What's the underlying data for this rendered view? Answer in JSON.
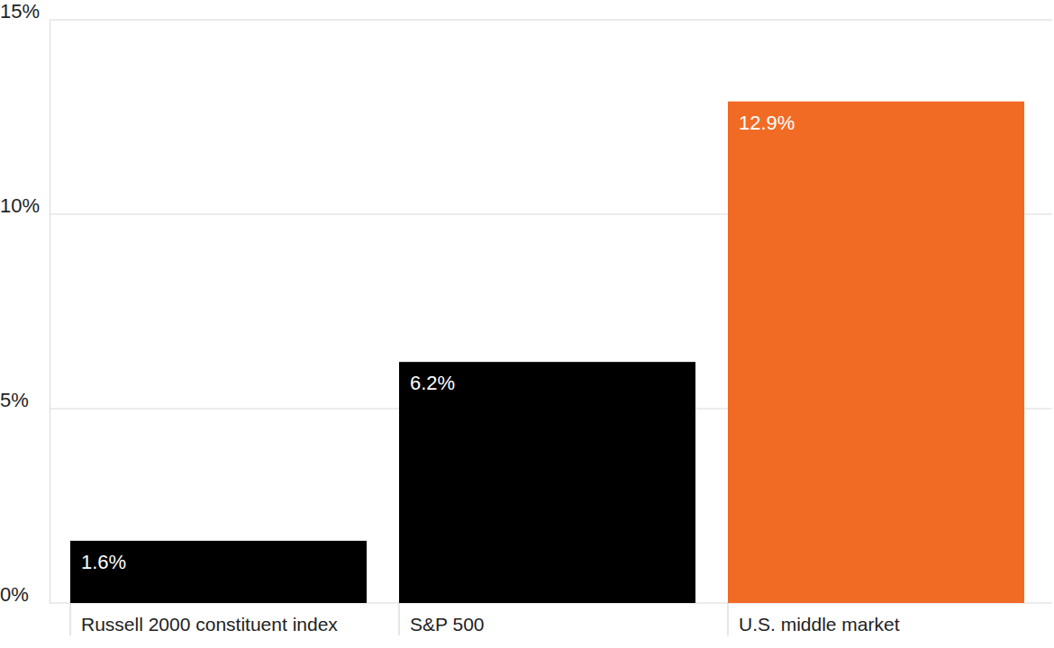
{
  "chart_data": {
    "type": "bar",
    "categories": [
      "Russell 2000 constituent index",
      "S&P 500",
      "U.S. middle market"
    ],
    "values": [
      1.6,
      6.2,
      12.9
    ],
    "value_labels": [
      "1.6%",
      "6.2%",
      "12.9%"
    ],
    "colors": [
      "#000000",
      "#000000",
      "#f26b24"
    ],
    "ylim": [
      0,
      15
    ],
    "yticks": [
      {
        "value": 0,
        "label": "0%"
      },
      {
        "value": 5,
        "label": "5%"
      },
      {
        "value": 10,
        "label": "10%"
      },
      {
        "value": 15,
        "label": "15%"
      }
    ],
    "grid": true,
    "data_labels": true
  }
}
